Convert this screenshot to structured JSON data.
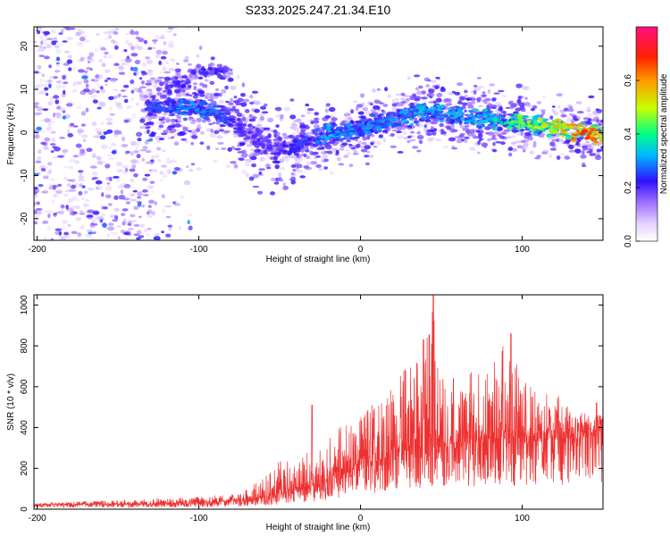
{
  "title": "S233.2025.247.21.34.E10",
  "chart_data": [
    {
      "type": "heatmap",
      "title": "S233.2025.247.21.34.E10",
      "xlabel": "Height of straight line (km)",
      "ylabel": "Frequency (Hz)",
      "xlim": [
        -202,
        150
      ],
      "ylim": [
        -25,
        24.5
      ],
      "xticks": [
        -200,
        -100,
        0,
        100
      ],
      "yticks": [
        -20,
        -10,
        0,
        10,
        20
      ],
      "colorbar": {
        "label": "Normalized spectral amplitude",
        "range": [
          0,
          0.8
        ],
        "ticks": [
          "0.0",
          "0.2",
          "0.4",
          "0.6"
        ],
        "tick_values": [
          0,
          0.2,
          0.4,
          0.6
        ]
      },
      "ridge": {
        "description": "dominant frequency band vs height",
        "x": [
          -130,
          -110,
          -90,
          -80,
          -70,
          -60,
          -50,
          -40,
          -30,
          -20,
          -10,
          0,
          10,
          20,
          40,
          60,
          80,
          100,
          120,
          140,
          150
        ],
        "y": [
          6,
          6,
          5,
          3,
          0,
          -3,
          -4,
          -3,
          -2,
          0,
          0,
          1,
          2,
          3,
          5,
          4,
          3,
          2,
          1,
          0,
          -1
        ],
        "peak_amplitude": [
          0.25,
          0.3,
          0.3,
          0.25,
          0.2,
          0.2,
          0.2,
          0.25,
          0.25,
          0.35,
          0.3,
          0.3,
          0.3,
          0.3,
          0.35,
          0.35,
          0.35,
          0.45,
          0.55,
          0.7,
          0.6
        ]
      },
      "secondary_band": {
        "x": [
          -120,
          -100,
          -90,
          -80
        ],
        "y": [
          10,
          14,
          15,
          13
        ]
      },
      "noise_region": {
        "x": [
          -202,
          -135
        ],
        "amplitude": 0.12
      }
    },
    {
      "type": "line",
      "color": "#ee3030",
      "xlabel": "Height of straight line (km)",
      "ylabel": "SNR (10 * v/v)",
      "xlim": [
        -202,
        150
      ],
      "ylim": [
        0,
        1050
      ],
      "xticks": [
        -200,
        -100,
        0,
        100
      ],
      "yticks": [
        0,
        200,
        400,
        600,
        800,
        1000
      ],
      "envelope": {
        "description": "upper envelope of the SNR trace",
        "x": [
          -202,
          -150,
          -100,
          -75,
          -60,
          -50,
          -40,
          -30,
          -20,
          -10,
          0,
          10,
          20,
          30,
          40,
          45,
          50,
          60,
          70,
          80,
          90,
          100,
          110,
          120,
          130,
          140,
          150
        ],
        "y": [
          30,
          45,
          60,
          80,
          150,
          250,
          230,
          300,
          350,
          420,
          480,
          560,
          600,
          750,
          820,
          1050,
          700,
          640,
          680,
          700,
          860,
          650,
          560,
          580,
          500,
          470,
          460
        ]
      },
      "baseline": {
        "description": "typical (median) SNR level",
        "x": [
          -202,
          -100,
          -60,
          -30,
          0,
          20,
          40,
          60,
          100,
          150
        ],
        "y": [
          20,
          25,
          50,
          100,
          200,
          270,
          300,
          310,
          320,
          360
        ]
      },
      "spikes": [
        {
          "x": -30,
          "y": 510
        },
        {
          "x": 39,
          "y": 830
        },
        {
          "x": 45,
          "y": 1050
        },
        {
          "x": 93,
          "y": 860
        },
        {
          "x": 146,
          "y": 520
        }
      ]
    }
  ]
}
